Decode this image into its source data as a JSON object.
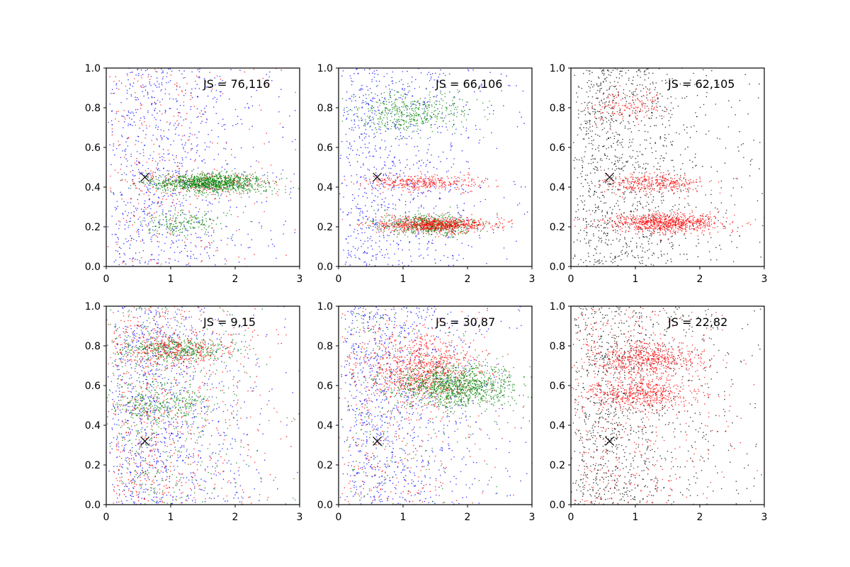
{
  "chart_data": [
    {
      "type": "scatter",
      "annotation": "JS = 76,116",
      "xlim": [
        0,
        3
      ],
      "ylim": [
        0,
        1
      ],
      "xticks": [
        "0",
        "1",
        "2",
        "3"
      ],
      "yticks": [
        "0.0",
        "0.2",
        "0.4",
        "0.6",
        "0.8",
        "1.0"
      ],
      "grid": false,
      "marker": {
        "x": 0.6,
        "y": 0.45,
        "symbol": "x"
      },
      "series": [
        {
          "color": "#0000ff",
          "points": 900,
          "clusters": [
            {
              "type": "uniform",
              "x": [
                0,
                3
              ],
              "y": [
                0,
                1
              ],
              "xscale": 0.55,
              "xshape": 1.6,
              "n": 900
            }
          ]
        },
        {
          "color": "#ff0000",
          "points": 500,
          "clusters": [
            {
              "type": "uniform",
              "x": [
                0,
                3
              ],
              "y": [
                0,
                1
              ],
              "xscale": 0.55,
              "xshape": 1.6,
              "n": 300
            },
            {
              "type": "band",
              "y": 0.42,
              "ysd": 0.03,
              "xmean": 1.6,
              "xsd": 0.5,
              "n": 200
            }
          ]
        },
        {
          "color": "#008000",
          "points": 1300,
          "clusters": [
            {
              "type": "band",
              "y": 0.42,
              "ysd": 0.025,
              "xmean": 1.6,
              "xsd": 0.45,
              "n": 1100
            },
            {
              "type": "band",
              "y": 0.22,
              "ysd": 0.03,
              "xmean": 1.2,
              "xsd": 0.35,
              "n": 200
            }
          ]
        }
      ]
    },
    {
      "type": "scatter",
      "annotation": "JS = 66,106",
      "xlim": [
        0,
        3
      ],
      "ylim": [
        0,
        1
      ],
      "xticks": [
        "0",
        "1",
        "2",
        "3"
      ],
      "yticks": [
        "0.0",
        "0.2",
        "0.4",
        "0.6",
        "0.8",
        "1.0"
      ],
      "grid": false,
      "marker": {
        "x": 0.6,
        "y": 0.45,
        "symbol": "x"
      },
      "series": [
        {
          "color": "#0000ff",
          "points": 900,
          "clusters": [
            {
              "type": "uniform",
              "x": [
                0,
                3
              ],
              "y": [
                0,
                1
              ],
              "xscale": 0.5,
              "xshape": 1.8,
              "n": 900
            }
          ]
        },
        {
          "color": "#008000",
          "points": 1000,
          "clusters": [
            {
              "type": "band",
              "y": 0.78,
              "ysd": 0.05,
              "xmean": 1.1,
              "xsd": 0.45,
              "n": 450
            },
            {
              "type": "band",
              "y": 0.21,
              "ysd": 0.025,
              "xmean": 1.4,
              "xsd": 0.4,
              "n": 550
            }
          ]
        },
        {
          "color": "#ff0000",
          "points": 1100,
          "clusters": [
            {
              "type": "band",
              "y": 0.42,
              "ysd": 0.02,
              "xmean": 1.3,
              "xsd": 0.45,
              "n": 350
            },
            {
              "type": "band",
              "y": 0.21,
              "ysd": 0.02,
              "xmean": 1.5,
              "xsd": 0.45,
              "n": 750
            }
          ]
        }
      ]
    },
    {
      "type": "scatter",
      "annotation": "JS = 62,105",
      "xlim": [
        0,
        3
      ],
      "ylim": [
        0,
        1
      ],
      "xticks": [
        "0",
        "1",
        "2",
        "3"
      ],
      "yticks": [
        "0.0",
        "0.2",
        "0.4",
        "0.6",
        "0.8",
        "1.0"
      ],
      "grid": false,
      "marker": {
        "x": 0.6,
        "y": 0.45,
        "symbol": "x"
      },
      "series": [
        {
          "color": "#000000",
          "points": 1200,
          "clusters": [
            {
              "type": "uniform",
              "x": [
                0,
                3
              ],
              "y": [
                0,
                1
              ],
              "xscale": 0.5,
              "xshape": 1.8,
              "n": 1200
            }
          ]
        },
        {
          "color": "#ff0000",
          "points": 1300,
          "clusters": [
            {
              "type": "band",
              "y": 0.42,
              "ysd": 0.025,
              "xmean": 1.3,
              "xsd": 0.4,
              "n": 350
            },
            {
              "type": "band",
              "y": 0.22,
              "ysd": 0.025,
              "xmean": 1.5,
              "xsd": 0.45,
              "n": 800
            },
            {
              "type": "band",
              "y": 0.8,
              "ysd": 0.04,
              "xmean": 0.9,
              "xsd": 0.3,
              "n": 150
            }
          ]
        }
      ]
    },
    {
      "type": "scatter",
      "annotation": "JS = 9,15",
      "xlim": [
        0,
        3
      ],
      "ylim": [
        0,
        1
      ],
      "xticks": [
        "0",
        "1",
        "2",
        "3"
      ],
      "yticks": [
        "0.0",
        "0.2",
        "0.4",
        "0.6",
        "0.8",
        "1.0"
      ],
      "grid": false,
      "marker": {
        "x": 0.6,
        "y": 0.32,
        "symbol": "x"
      },
      "series": [
        {
          "color": "#0000ff",
          "points": 1000,
          "clusters": [
            {
              "type": "uniform",
              "x": [
                0,
                3
              ],
              "y": [
                0,
                1
              ],
              "xscale": 0.5,
              "xshape": 1.8,
              "n": 1000
            }
          ]
        },
        {
          "color": "#008000",
          "points": 1100,
          "clusters": [
            {
              "type": "band",
              "y": 0.78,
              "ysd": 0.03,
              "xmean": 1.1,
              "xsd": 0.45,
              "n": 400
            },
            {
              "type": "band",
              "y": 0.5,
              "ysd": 0.05,
              "xmean": 0.9,
              "xsd": 0.4,
              "n": 300
            },
            {
              "type": "uniform",
              "x": [
                0,
                3
              ],
              "y": [
                0,
                1
              ],
              "xscale": 0.5,
              "xshape": 1.8,
              "n": 400
            }
          ]
        },
        {
          "color": "#ff0000",
          "points": 1000,
          "clusters": [
            {
              "type": "uniform",
              "x": [
                0,
                3
              ],
              "y": [
                0,
                1
              ],
              "xscale": 0.5,
              "xshape": 1.8,
              "n": 700
            },
            {
              "type": "band",
              "y": 0.78,
              "ysd": 0.04,
              "xmean": 1.1,
              "xsd": 0.45,
              "n": 300
            }
          ]
        }
      ]
    },
    {
      "type": "scatter",
      "annotation": "JS = 30,87",
      "xlim": [
        0,
        3
      ],
      "ylim": [
        0,
        1
      ],
      "xticks": [
        "0",
        "1",
        "2",
        "3"
      ],
      "yticks": [
        "0.0",
        "0.2",
        "0.4",
        "0.6",
        "0.8",
        "1.0"
      ],
      "grid": false,
      "marker": {
        "x": 0.6,
        "y": 0.32,
        "symbol": "x"
      },
      "series": [
        {
          "color": "#0000ff",
          "points": 1000,
          "clusters": [
            {
              "type": "uniform",
              "x": [
                0,
                3
              ],
              "y": [
                0,
                1
              ],
              "xscale": 0.5,
              "xshape": 1.8,
              "n": 1000
            }
          ]
        },
        {
          "color": "#ff0000",
          "points": 1200,
          "clusters": [
            {
              "type": "band",
              "y": 0.68,
              "ysd": 0.08,
              "xmean": 1.3,
              "xsd": 0.45,
              "n": 800
            },
            {
              "type": "uniform",
              "x": [
                0,
                3
              ],
              "y": [
                0,
                1
              ],
              "xscale": 0.5,
              "xshape": 1.8,
              "n": 400
            }
          ]
        },
        {
          "color": "#008000",
          "points": 1300,
          "clusters": [
            {
              "type": "band",
              "y": 0.6,
              "ysd": 0.055,
              "xmean": 1.8,
              "xsd": 0.45,
              "n": 1100
            },
            {
              "type": "uniform",
              "x": [
                0,
                3
              ],
              "y": [
                0,
                1
              ],
              "xscale": 0.5,
              "xshape": 1.8,
              "n": 200
            }
          ]
        }
      ]
    },
    {
      "type": "scatter",
      "annotation": "JS = 22,82",
      "xlim": [
        0,
        3
      ],
      "ylim": [
        0,
        1
      ],
      "xticks": [
        "0",
        "1",
        "2",
        "3"
      ],
      "yticks": [
        "0.0",
        "0.2",
        "0.4",
        "0.6",
        "0.8",
        "1.0"
      ],
      "grid": false,
      "marker": {
        "x": 0.6,
        "y": 0.32,
        "symbol": "x"
      },
      "series": [
        {
          "color": "#000000",
          "points": 1100,
          "clusters": [
            {
              "type": "uniform",
              "x": [
                0,
                3
              ],
              "y": [
                0,
                1
              ],
              "xscale": 0.5,
              "xshape": 1.8,
              "n": 1100
            }
          ]
        },
        {
          "color": "#ff0000",
          "points": 1500,
          "clusters": [
            {
              "type": "band",
              "y": 0.73,
              "ysd": 0.04,
              "xmean": 1.2,
              "xsd": 0.45,
              "n": 550
            },
            {
              "type": "band",
              "y": 0.56,
              "ysd": 0.04,
              "xmean": 1.1,
              "xsd": 0.45,
              "n": 500
            },
            {
              "type": "uniform",
              "x": [
                0,
                3
              ],
              "y": [
                0,
                1
              ],
              "xscale": 0.5,
              "xshape": 1.8,
              "n": 450
            }
          ]
        }
      ]
    }
  ]
}
